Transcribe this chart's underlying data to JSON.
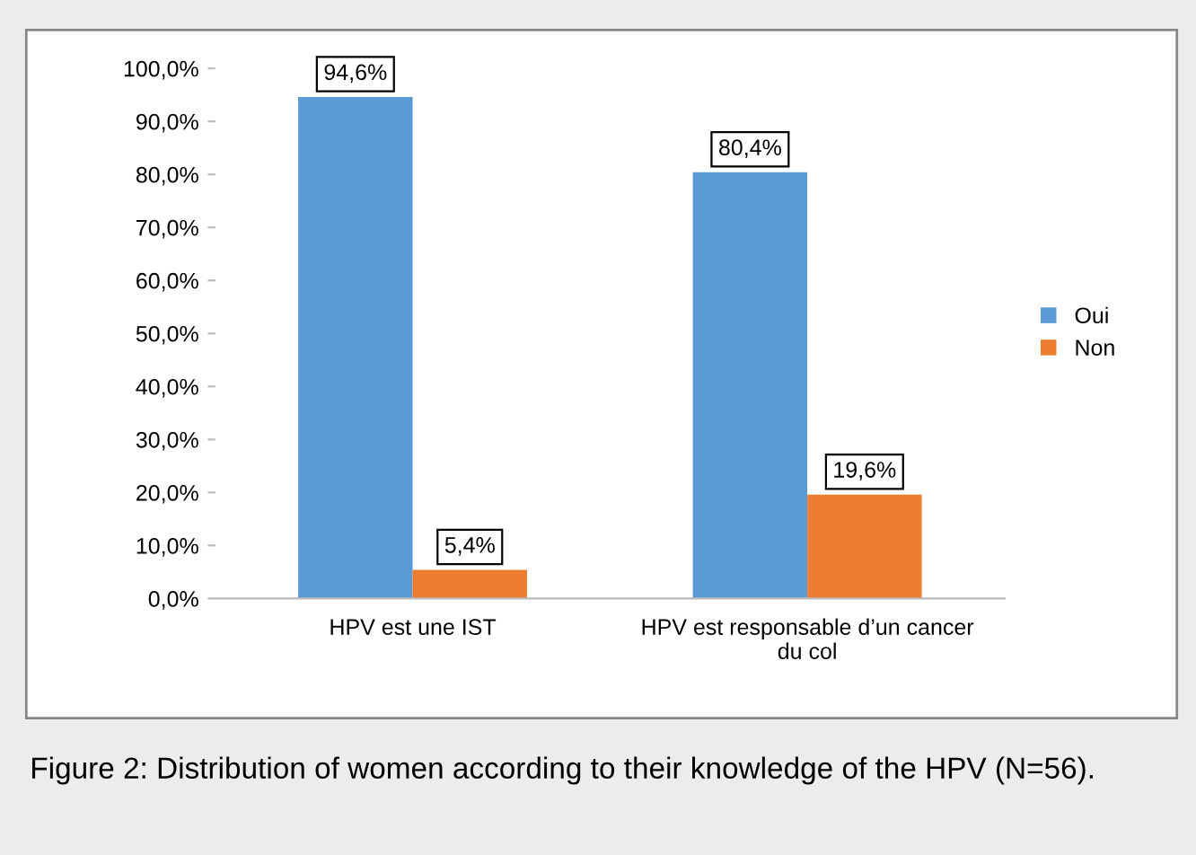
{
  "chart_data": {
    "type": "bar",
    "categories": [
      "HPV est une IST",
      "HPV est responsable d’un cancer\ndu col"
    ],
    "series": [
      {
        "name": "Oui",
        "color": "#5b9bd5",
        "values": [
          94.6,
          80.4
        ],
        "value_labels": [
          "94,6%",
          "80,4%"
        ]
      },
      {
        "name": "Non",
        "color": "#ed7d31",
        "values": [
          5.4,
          19.6
        ],
        "value_labels": [
          "5,4%",
          "19,6%"
        ]
      }
    ],
    "ylim": [
      0,
      100
    ],
    "yticks": [
      {
        "value": 0,
        "label": "0,0%"
      },
      {
        "value": 10,
        "label": "10,0%"
      },
      {
        "value": 20,
        "label": "20,0%"
      },
      {
        "value": 30,
        "label": "30,0%"
      },
      {
        "value": 40,
        "label": "40,0%"
      },
      {
        "value": 50,
        "label": "50,0%"
      },
      {
        "value": 60,
        "label": "60,0%"
      },
      {
        "value": 70,
        "label": "70,0%"
      },
      {
        "value": 80,
        "label": "80,0%"
      },
      {
        "value": 90,
        "label": "90,0%"
      },
      {
        "value": 100,
        "label": "100,0%"
      }
    ],
    "grid": false,
    "legend": "right",
    "annotations": [
      "Figure 2: Distribution of women according to their knowledge of the HPV (N=56)."
    ]
  }
}
